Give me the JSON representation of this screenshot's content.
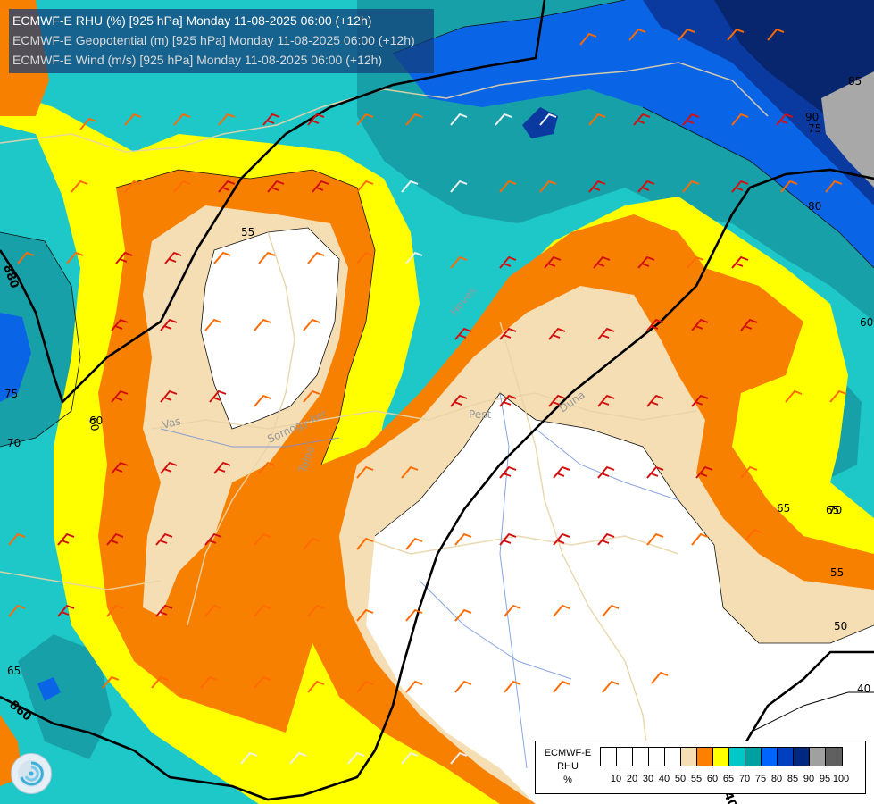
{
  "titles": {
    "line1": "ECMWF-E RHU (%) [925 hPa] Monday 11-08-2025 06:00 (+12h)",
    "line2": "ECMWF-E Geopotential (m) [925 hPa] Monday 11-08-2025 06:00 (+12h)",
    "line3": "ECMWF-E Wind (m/s) [925 hPa] Monday 11-08-2025 06:00 (+12h)"
  },
  "legend": {
    "model": "ECMWF-E",
    "variable": "RHU",
    "unit": "%",
    "ticks": [
      "10",
      "20",
      "30",
      "40",
      "50",
      "55",
      "60",
      "65",
      "70",
      "75",
      "80",
      "85",
      "90",
      "95",
      "100"
    ],
    "colors": [
      "#ffffff",
      "#ffffff",
      "#ffffff",
      "#ffffff",
      "#ffffff",
      "#f5deb3",
      "#ff8000",
      "#ffff00",
      "#00c8c8",
      "#00a0a0",
      "#0064ff",
      "#0040c0",
      "#002880",
      "#a0a0a0",
      "#606060"
    ]
  },
  "map": {
    "contour_labels": [
      "55",
      "60",
      "65",
      "70",
      "75",
      "80",
      "85",
      "90",
      "50",
      "40",
      "60",
      "65",
      "70",
      "75",
      "55",
      "60",
      "65"
    ],
    "geopotential_labels": [
      "880",
      "860",
      "840"
    ],
    "rivers": [
      "Vas",
      "Somogy-ker",
      "Pest",
      "Heves",
      "Tolna",
      "Duna"
    ],
    "colors": {
      "white": "#ffffff",
      "tan": "#f5deb3",
      "orange": "#f88000",
      "yellow": "#ffff00",
      "cyan": "#1ec8c8",
      "teal": "#18a0a8",
      "blue": "#0a64e6",
      "darkblue": "#0a3aa0",
      "navy": "#07266e",
      "gray": "#a8a8a8"
    }
  }
}
